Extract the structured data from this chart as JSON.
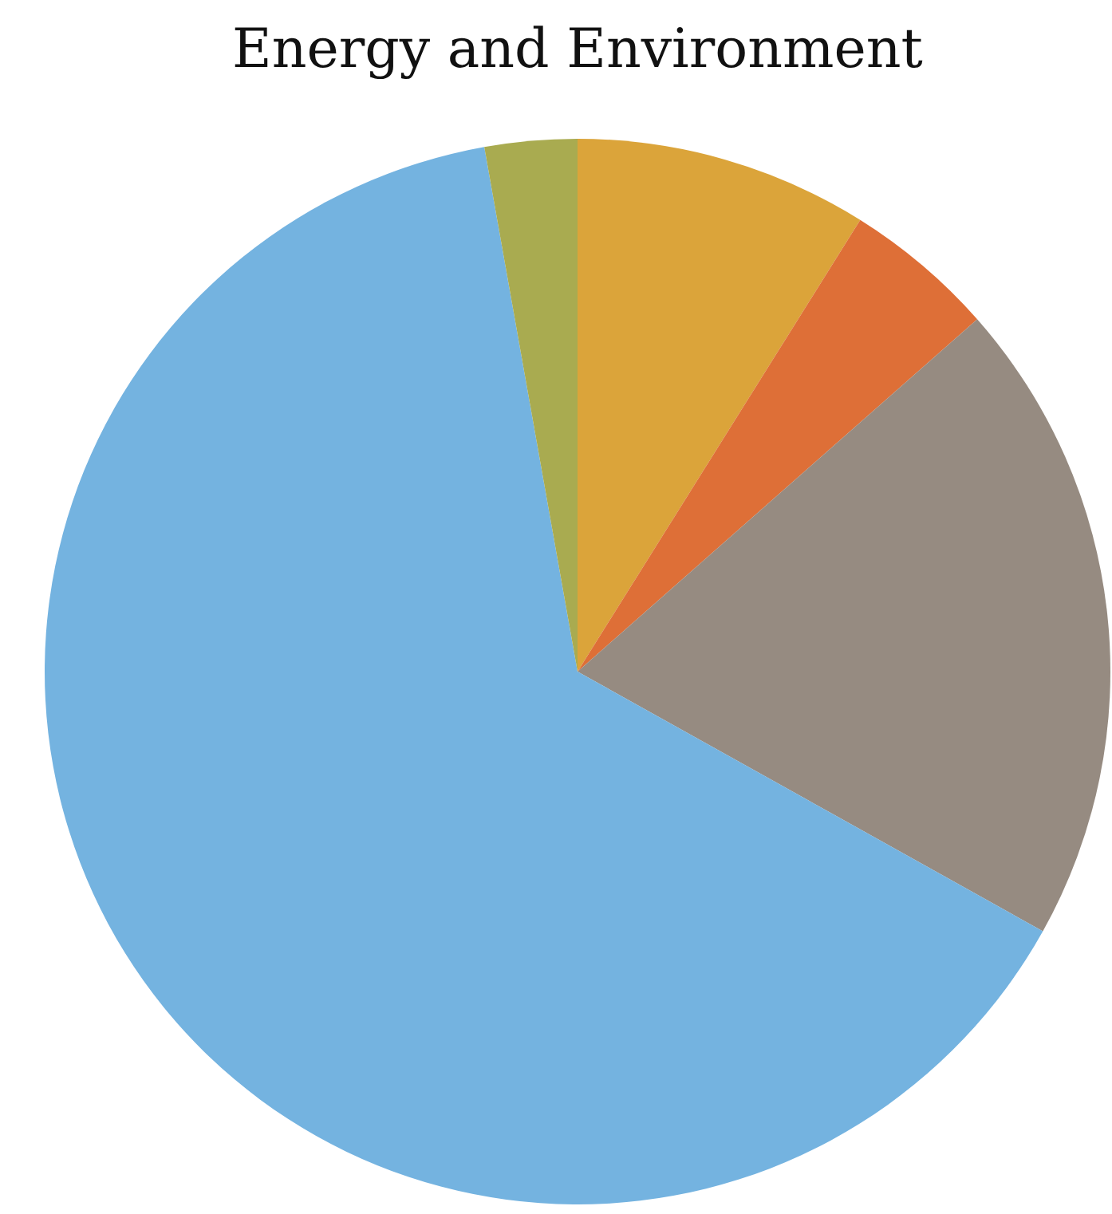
{
  "chart_data": {
    "type": "pie",
    "title": "Energy and Environment",
    "categories": [
      null,
      null,
      null,
      null,
      null
    ],
    "values": [
      8.9,
      4.6,
      19.6,
      64.1,
      2.8
    ],
    "colors": [
      "#dba43a",
      "#de6f37",
      "#968b81",
      "#74b3e0",
      "#a9ab50"
    ]
  }
}
